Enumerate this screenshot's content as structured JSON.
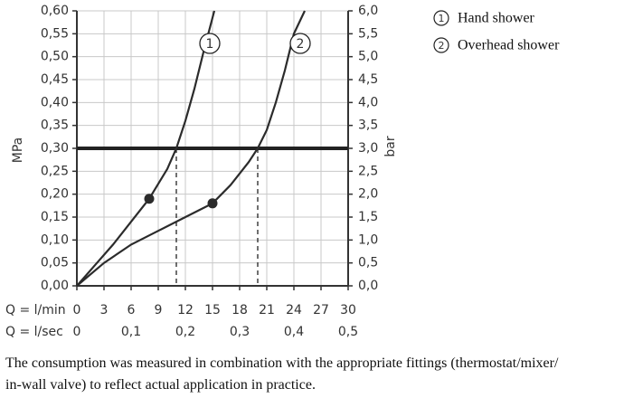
{
  "chart_data": {
    "type": "line",
    "ylabel": "MPa",
    "y2label": "bar",
    "xlabel": "Q = l/min",
    "x2label": "Q = l/sec",
    "caption": "The consumption was measured in combination with the appropriate fittings (thermostat/mixer/ in-wall valve) to reflect actual application in practice.",
    "xlim": [
      0,
      30
    ],
    "xticks": [
      0,
      3,
      6,
      9,
      12,
      15,
      18,
      21,
      24,
      27,
      30
    ],
    "x2lim": [
      0,
      0.5
    ],
    "x2ticks": [
      {
        "value": 0,
        "label": "0"
      },
      {
        "value": 0.1,
        "label": "0,1"
      },
      {
        "value": 0.2,
        "label": "0,2"
      },
      {
        "value": 0.3,
        "label": "0,3"
      },
      {
        "value": 0.4,
        "label": "0,4"
      },
      {
        "value": 0.5,
        "label": "0,5"
      }
    ],
    "ylim": [
      0,
      0.6
    ],
    "yticks": [
      {
        "value": 0,
        "label": "0,00"
      },
      {
        "value": 0.05,
        "label": "0,05"
      },
      {
        "value": 0.1,
        "label": "0,10"
      },
      {
        "value": 0.15,
        "label": "0,15"
      },
      {
        "value": 0.2,
        "label": "0,20"
      },
      {
        "value": 0.25,
        "label": "0,25"
      },
      {
        "value": 0.3,
        "label": "0,30"
      },
      {
        "value": 0.35,
        "label": "0,35"
      },
      {
        "value": 0.4,
        "label": "0,40"
      },
      {
        "value": 0.45,
        "label": "0,45"
      },
      {
        "value": 0.5,
        "label": "0,50"
      },
      {
        "value": 0.55,
        "label": "0,55"
      },
      {
        "value": 0.6,
        "label": "0,60"
      }
    ],
    "y2lim": [
      0,
      6
    ],
    "y2ticks": [
      {
        "value": 0,
        "label": "0,0"
      },
      {
        "value": 0.5,
        "label": "0,5"
      },
      {
        "value": 1,
        "label": "1,0"
      },
      {
        "value": 1.5,
        "label": "1,5"
      },
      {
        "value": 2,
        "label": "2,0"
      },
      {
        "value": 2.5,
        "label": "2,5"
      },
      {
        "value": 3,
        "label": "3,0"
      },
      {
        "value": 3.5,
        "label": "3,5"
      },
      {
        "value": 4,
        "label": "4,0"
      },
      {
        "value": 4.5,
        "label": "4,5"
      },
      {
        "value": 5,
        "label": "5,0"
      },
      {
        "value": 5.5,
        "label": "5,5"
      },
      {
        "value": 6,
        "label": "6,0"
      }
    ],
    "grid": true,
    "reference_y": 0.3,
    "series": [
      {
        "name": "Hand shower",
        "label": "1",
        "color": "#2b2b2b",
        "x": [
          0,
          2,
          4,
          6,
          8,
          10,
          11,
          12,
          13,
          14,
          15.2
        ],
        "values": [
          0,
          0.045,
          0.09,
          0.14,
          0.19,
          0.255,
          0.3,
          0.36,
          0.43,
          0.51,
          0.6
        ],
        "marker": {
          "x": 8,
          "y": 0.19
        },
        "drop_x": 11
      },
      {
        "name": "Overhead shower",
        "label": "2",
        "color": "#2b2b2b",
        "x": [
          0,
          3,
          6,
          9,
          12,
          15,
          17,
          19,
          20,
          21,
          22,
          23,
          24,
          25.2
        ],
        "values": [
          0,
          0.05,
          0.09,
          0.12,
          0.15,
          0.18,
          0.22,
          0.27,
          0.3,
          0.34,
          0.4,
          0.47,
          0.55,
          0.6
        ],
        "marker": {
          "x": 15,
          "y": 0.18
        },
        "drop_x": 20
      }
    ]
  }
}
